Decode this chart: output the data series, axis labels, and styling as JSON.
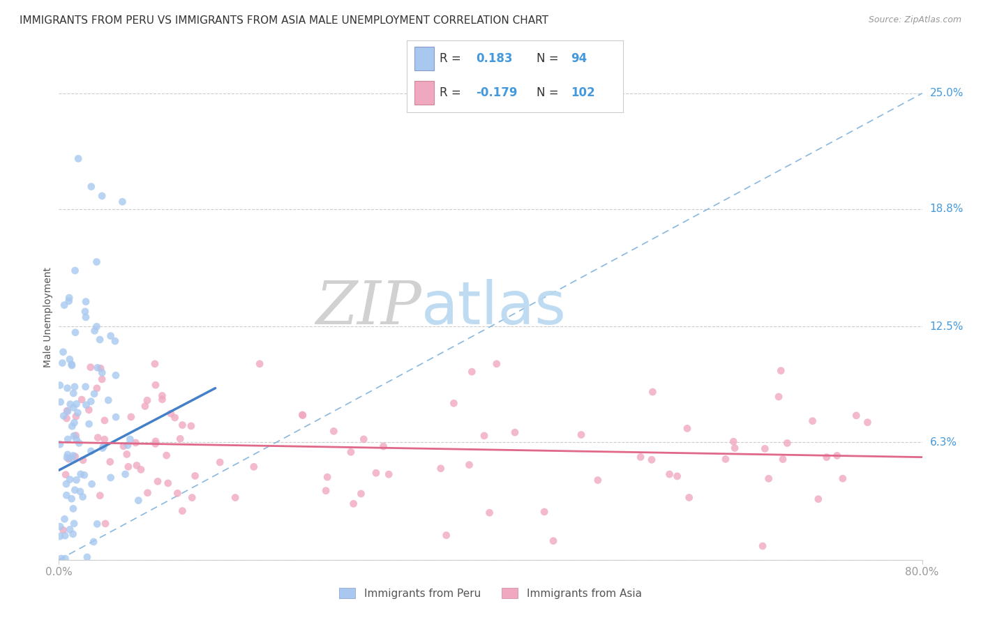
{
  "title": "IMMIGRANTS FROM PERU VS IMMIGRANTS FROM ASIA MALE UNEMPLOYMENT CORRELATION CHART",
  "source": "Source: ZipAtlas.com",
  "ylabel": "Male Unemployment",
  "xlim": [
    0.0,
    0.8
  ],
  "ylim": [
    0.0,
    0.26
  ],
  "ytick_vals": [
    0.0,
    0.063,
    0.125,
    0.188,
    0.25
  ],
  "ytick_labels": [
    "",
    "6.3%",
    "12.5%",
    "18.8%",
    "25.0%"
  ],
  "xtick_vals": [
    0.0,
    0.8
  ],
  "xtick_labels": [
    "0.0%",
    "80.0%"
  ],
  "legend1_label": "Immigrants from Peru",
  "legend2_label": "Immigrants from Asia",
  "R_peru": 0.183,
  "N_peru": 94,
  "R_asia": -0.179,
  "N_asia": 102,
  "scatter_peru_color": "#a8c8f0",
  "scatter_asia_color": "#f0a8c0",
  "line_peru_color": "#4480c8",
  "line_asia_color": "#e06888",
  "dashed_line_color": "#88b8e0",
  "watermark_zip_color": "#cccccc",
  "watermark_atlas_color": "#b8d8f0",
  "background_color": "#ffffff",
  "title_fontsize": 11,
  "axis_label_fontsize": 10,
  "tick_fontsize": 11,
  "legend_fontsize": 11,
  "peru_line_x": [
    0.0,
    0.145
  ],
  "peru_line_y": [
    0.048,
    0.092
  ],
  "asia_line_x": [
    0.0,
    0.8
  ],
  "asia_line_y": [
    0.063,
    0.055
  ]
}
